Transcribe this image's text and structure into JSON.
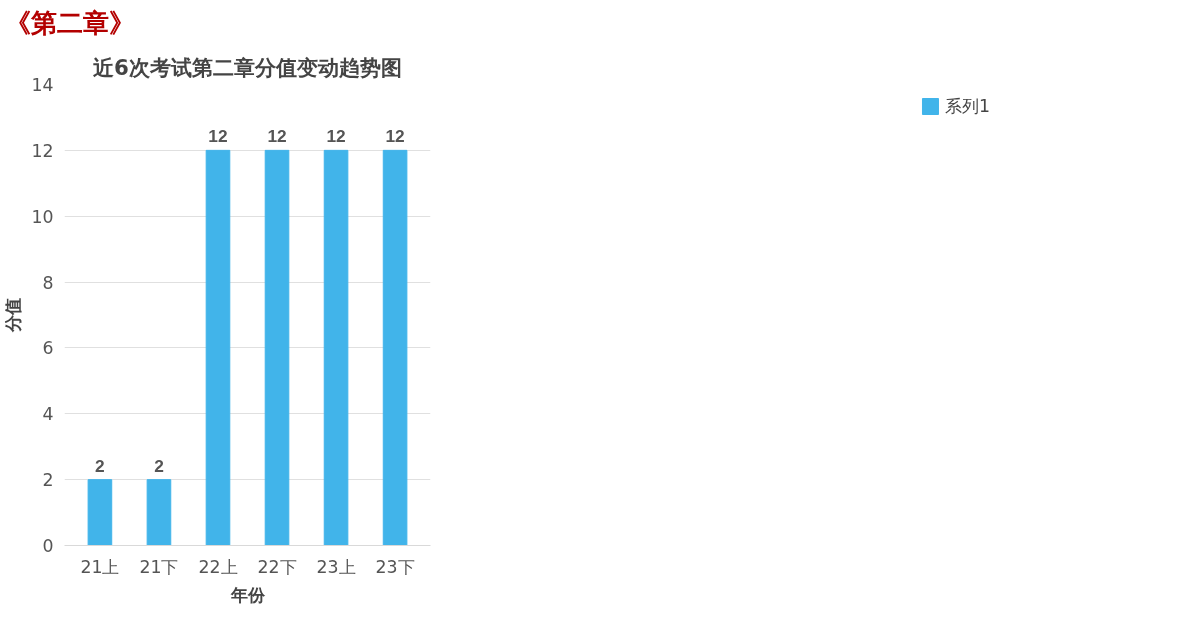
{
  "chart_data": {
    "type": "bar",
    "title": "近6次考试第二章分值变动趋势图",
    "annotations": [
      "《第二章》"
    ],
    "xlabel": "年份",
    "ylabel": "分值",
    "categories": [
      "21上",
      "21下",
      "22上",
      "22下",
      "23上",
      "23下"
    ],
    "series": [
      {
        "name": "系列1",
        "color": "#41b4ea",
        "values": [
          2,
          2,
          12,
          12,
          12,
          12
        ]
      }
    ],
    "ylim": [
      0,
      14
    ],
    "yticks": [
      0,
      2,
      4,
      6,
      8,
      10,
      12,
      14
    ],
    "grid": "y",
    "legend": "right",
    "data_labels": true
  }
}
